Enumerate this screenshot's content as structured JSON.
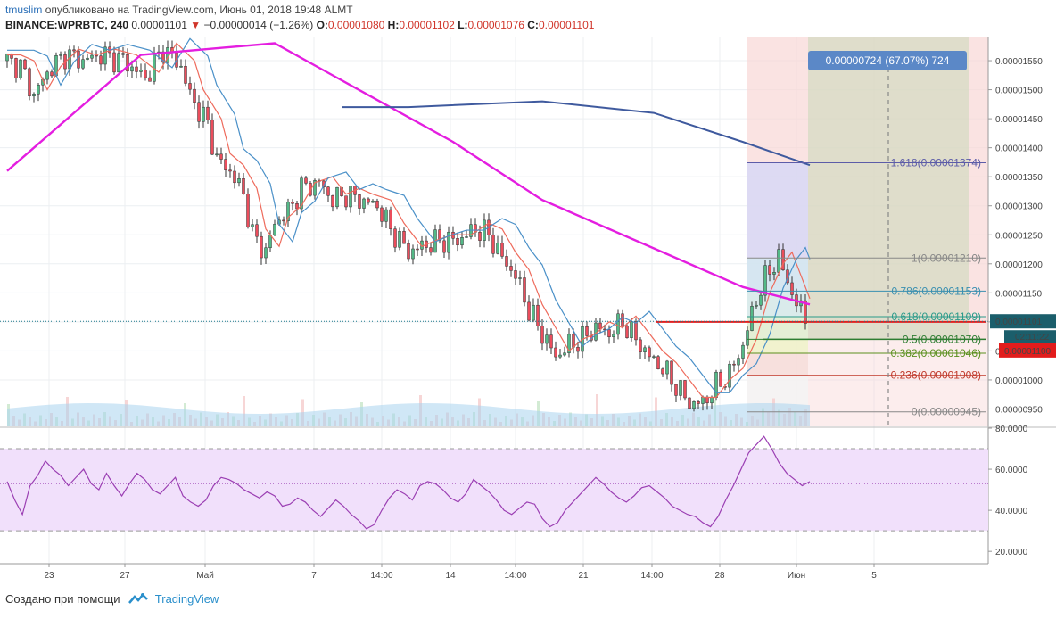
{
  "header": {
    "author": "tmuslim",
    "published": "опубликовано на TradingView.com, Июнь 01, 2018 19:48 ALMT",
    "symbol": "BINANCE:WPRBTC, 240",
    "last": "0.00001101",
    "change": "−0.00000014 (−1.26%)",
    "o_label": "O:",
    "o_value": "0.00001080",
    "h_label": "H:",
    "h_value": "0.00001102",
    "l_label": "L:",
    "l_value": "0.00001076",
    "c_label": "C:",
    "c_value": "0.00001101"
  },
  "footer": {
    "created_with": "Создано при помощи",
    "brand": "TradingView"
  },
  "colors": {
    "up": "#53b987",
    "down": "#eb4d5c",
    "ema_fast": "#ee6a5b",
    "ema_slow": "#4a90c8",
    "ma_long": "#e41ee0",
    "ma_mid": "#3f5a9e",
    "rsi": "#9b3fb3",
    "rsi_band": "#f1e0fb"
  },
  "chart_data": [
    {
      "type": "candlestick",
      "symbol": "BINANCE:WPRBTC",
      "timeframe": "240",
      "ylim": [
        9.2e-06,
        1.59e-05
      ],
      "y_ticks": [
        "0.00001550",
        "0.00001500",
        "0.00001450",
        "0.00001400",
        "0.00001350",
        "0.00001300",
        "0.00001250",
        "0.00001200",
        "0.00001150",
        "0.00001100",
        "0.00001050",
        "0.00001000",
        "0.00000950"
      ],
      "x_ticks": [
        "23",
        "27",
        "Май",
        "7",
        "14:00",
        "14",
        "14:00",
        "21",
        "14:00",
        "28",
        "Июн",
        "5"
      ],
      "current_price_label": "0.00001101",
      "countdown_label": "02:11:22",
      "hline_label": "0.00001100",
      "measure_label": "0.00000724 (67.07%) 724",
      "fib_levels": [
        {
          "ratio": "1.618",
          "price": 1.374e-05,
          "label": "1.618(0.00001374)",
          "color": "#5c5ca8"
        },
        {
          "ratio": "1",
          "price": 1.21e-05,
          "label": "1(0.00001210)",
          "color": "#888888"
        },
        {
          "ratio": "0.786",
          "price": 1.153e-05,
          "label": "0.786(0.00001153)",
          "color": "#3a8fb0"
        },
        {
          "ratio": "0.618",
          "price": 1.109e-05,
          "label": "0.618(0.00001109)",
          "color": "#2a9a8a"
        },
        {
          "ratio": "0.5",
          "price": 1.07e-05,
          "label": "0.5(0.00001070)",
          "color": "#2e7d32"
        },
        {
          "ratio": "0.382",
          "price": 1.046e-05,
          "label": "0.382(0.00001046)",
          "color": "#5a8f1d"
        },
        {
          "ratio": "0.236",
          "price": 1.008e-05,
          "label": "0.236(0.00001008)",
          "color": "#c0392b"
        },
        {
          "ratio": "0",
          "price": 9.45e-06,
          "label": "0(0.00000945)",
          "color": "#888888"
        }
      ],
      "price_path": [
        [
          0,
          1.55e-05
        ],
        [
          6,
          1.54e-05
        ],
        [
          12,
          1.49e-05
        ],
        [
          18,
          1.53e-05
        ],
        [
          26,
          1.56e-05
        ],
        [
          34,
          1.55e-05
        ],
        [
          42,
          1.56e-05
        ],
        [
          52,
          1.55e-05
        ],
        [
          62,
          1.52e-05
        ],
        [
          70,
          1.57e-05
        ],
        [
          78,
          1.54e-05
        ],
        [
          82,
          1.49e-05
        ],
        [
          90,
          1.44e-05
        ],
        [
          94,
          1.38e-05
        ],
        [
          100,
          1.36e-05
        ],
        [
          106,
          1.32e-05
        ],
        [
          110,
          1.25e-05
        ],
        [
          116,
          1.22e-05
        ],
        [
          120,
          1.27e-05
        ],
        [
          126,
          1.29e-05
        ],
        [
          132,
          1.33e-05
        ],
        [
          140,
          1.34e-05
        ],
        [
          146,
          1.31e-05
        ],
        [
          152,
          1.32e-05
        ],
        [
          158,
          1.31e-05
        ],
        [
          166,
          1.3e-05
        ],
        [
          172,
          1.26e-05
        ],
        [
          180,
          1.22e-05
        ],
        [
          186,
          1.23e-05
        ],
        [
          194,
          1.24e-05
        ],
        [
          202,
          1.24e-05
        ],
        [
          210,
          1.26e-05
        ],
        [
          216,
          1.25e-05
        ],
        [
          222,
          1.21e-05
        ],
        [
          228,
          1.18e-05
        ],
        [
          234,
          1.12e-05
        ],
        [
          240,
          1.08e-05
        ],
        [
          246,
          1.04e-05
        ],
        [
          252,
          1.06e-05
        ],
        [
          258,
          1.07e-05
        ],
        [
          264,
          1.09e-05
        ],
        [
          270,
          1.08e-05
        ],
        [
          276,
          1.1e-05
        ],
        [
          282,
          1.07e-05
        ],
        [
          288,
          1.04e-05
        ],
        [
          294,
          1.02e-05
        ],
        [
          300,
          9.9e-06
        ],
        [
          306,
          9.6e-06
        ],
        [
          312,
          9.6e-06
        ],
        [
          318,
          9.9e-06
        ],
        [
          324,
          1.01e-05
        ],
        [
          330,
          1.06e-05
        ],
        [
          336,
          1.14e-05
        ],
        [
          342,
          1.19e-05
        ],
        [
          346,
          1.21e-05
        ],
        [
          350,
          1.17e-05
        ],
        [
          354,
          1.13e-05
        ],
        [
          358,
          1.11e-05
        ],
        [
          360,
          1.1e-05
        ]
      ],
      "ma_long": [
        [
          0,
          1.36e-05
        ],
        [
          60,
          1.56e-05
        ],
        [
          120,
          1.58e-05
        ],
        [
          200,
          1.41e-05
        ],
        [
          240,
          1.31e-05
        ],
        [
          300,
          1.21e-05
        ],
        [
          330,
          1.16e-05
        ],
        [
          360,
          1.13e-05
        ]
      ],
      "ma_mid": [
        [
          150,
          1.47e-05
        ],
        [
          180,
          1.47e-05
        ],
        [
          240,
          1.48e-05
        ],
        [
          290,
          1.46e-05
        ],
        [
          330,
          1.41e-05
        ],
        [
          360,
          1.37e-05
        ]
      ],
      "volume_max": 1
    },
    {
      "type": "line",
      "name": "RSI",
      "ylim": [
        14,
        80
      ],
      "y_ticks": [
        "80.0000",
        "60.0000",
        "40.0000",
        "20.0000"
      ],
      "bands": [
        30,
        70
      ],
      "midline": 53,
      "values": [
        54,
        45,
        38,
        52,
        57,
        64,
        60,
        57,
        52,
        56,
        60,
        53,
        50,
        58,
        52,
        47,
        53,
        58,
        55,
        50,
        48,
        52,
        56,
        47,
        44,
        42,
        45,
        52,
        56,
        55,
        53,
        50,
        48,
        46,
        49,
        47,
        42,
        43,
        46,
        44,
        40,
        37,
        41,
        45,
        42,
        38,
        35,
        31,
        33,
        40,
        46,
        50,
        48,
        45,
        52,
        54,
        53,
        50,
        46,
        44,
        48,
        55,
        52,
        49,
        45,
        40,
        38,
        41,
        44,
        43,
        36,
        32,
        34,
        40,
        44,
        48,
        52,
        56,
        53,
        49,
        46,
        44,
        47,
        51,
        52,
        49,
        46,
        42,
        40,
        38,
        37,
        34,
        32,
        37,
        45,
        52,
        60,
        68,
        72,
        76,
        70,
        63,
        58,
        55,
        52,
        54
      ]
    }
  ]
}
